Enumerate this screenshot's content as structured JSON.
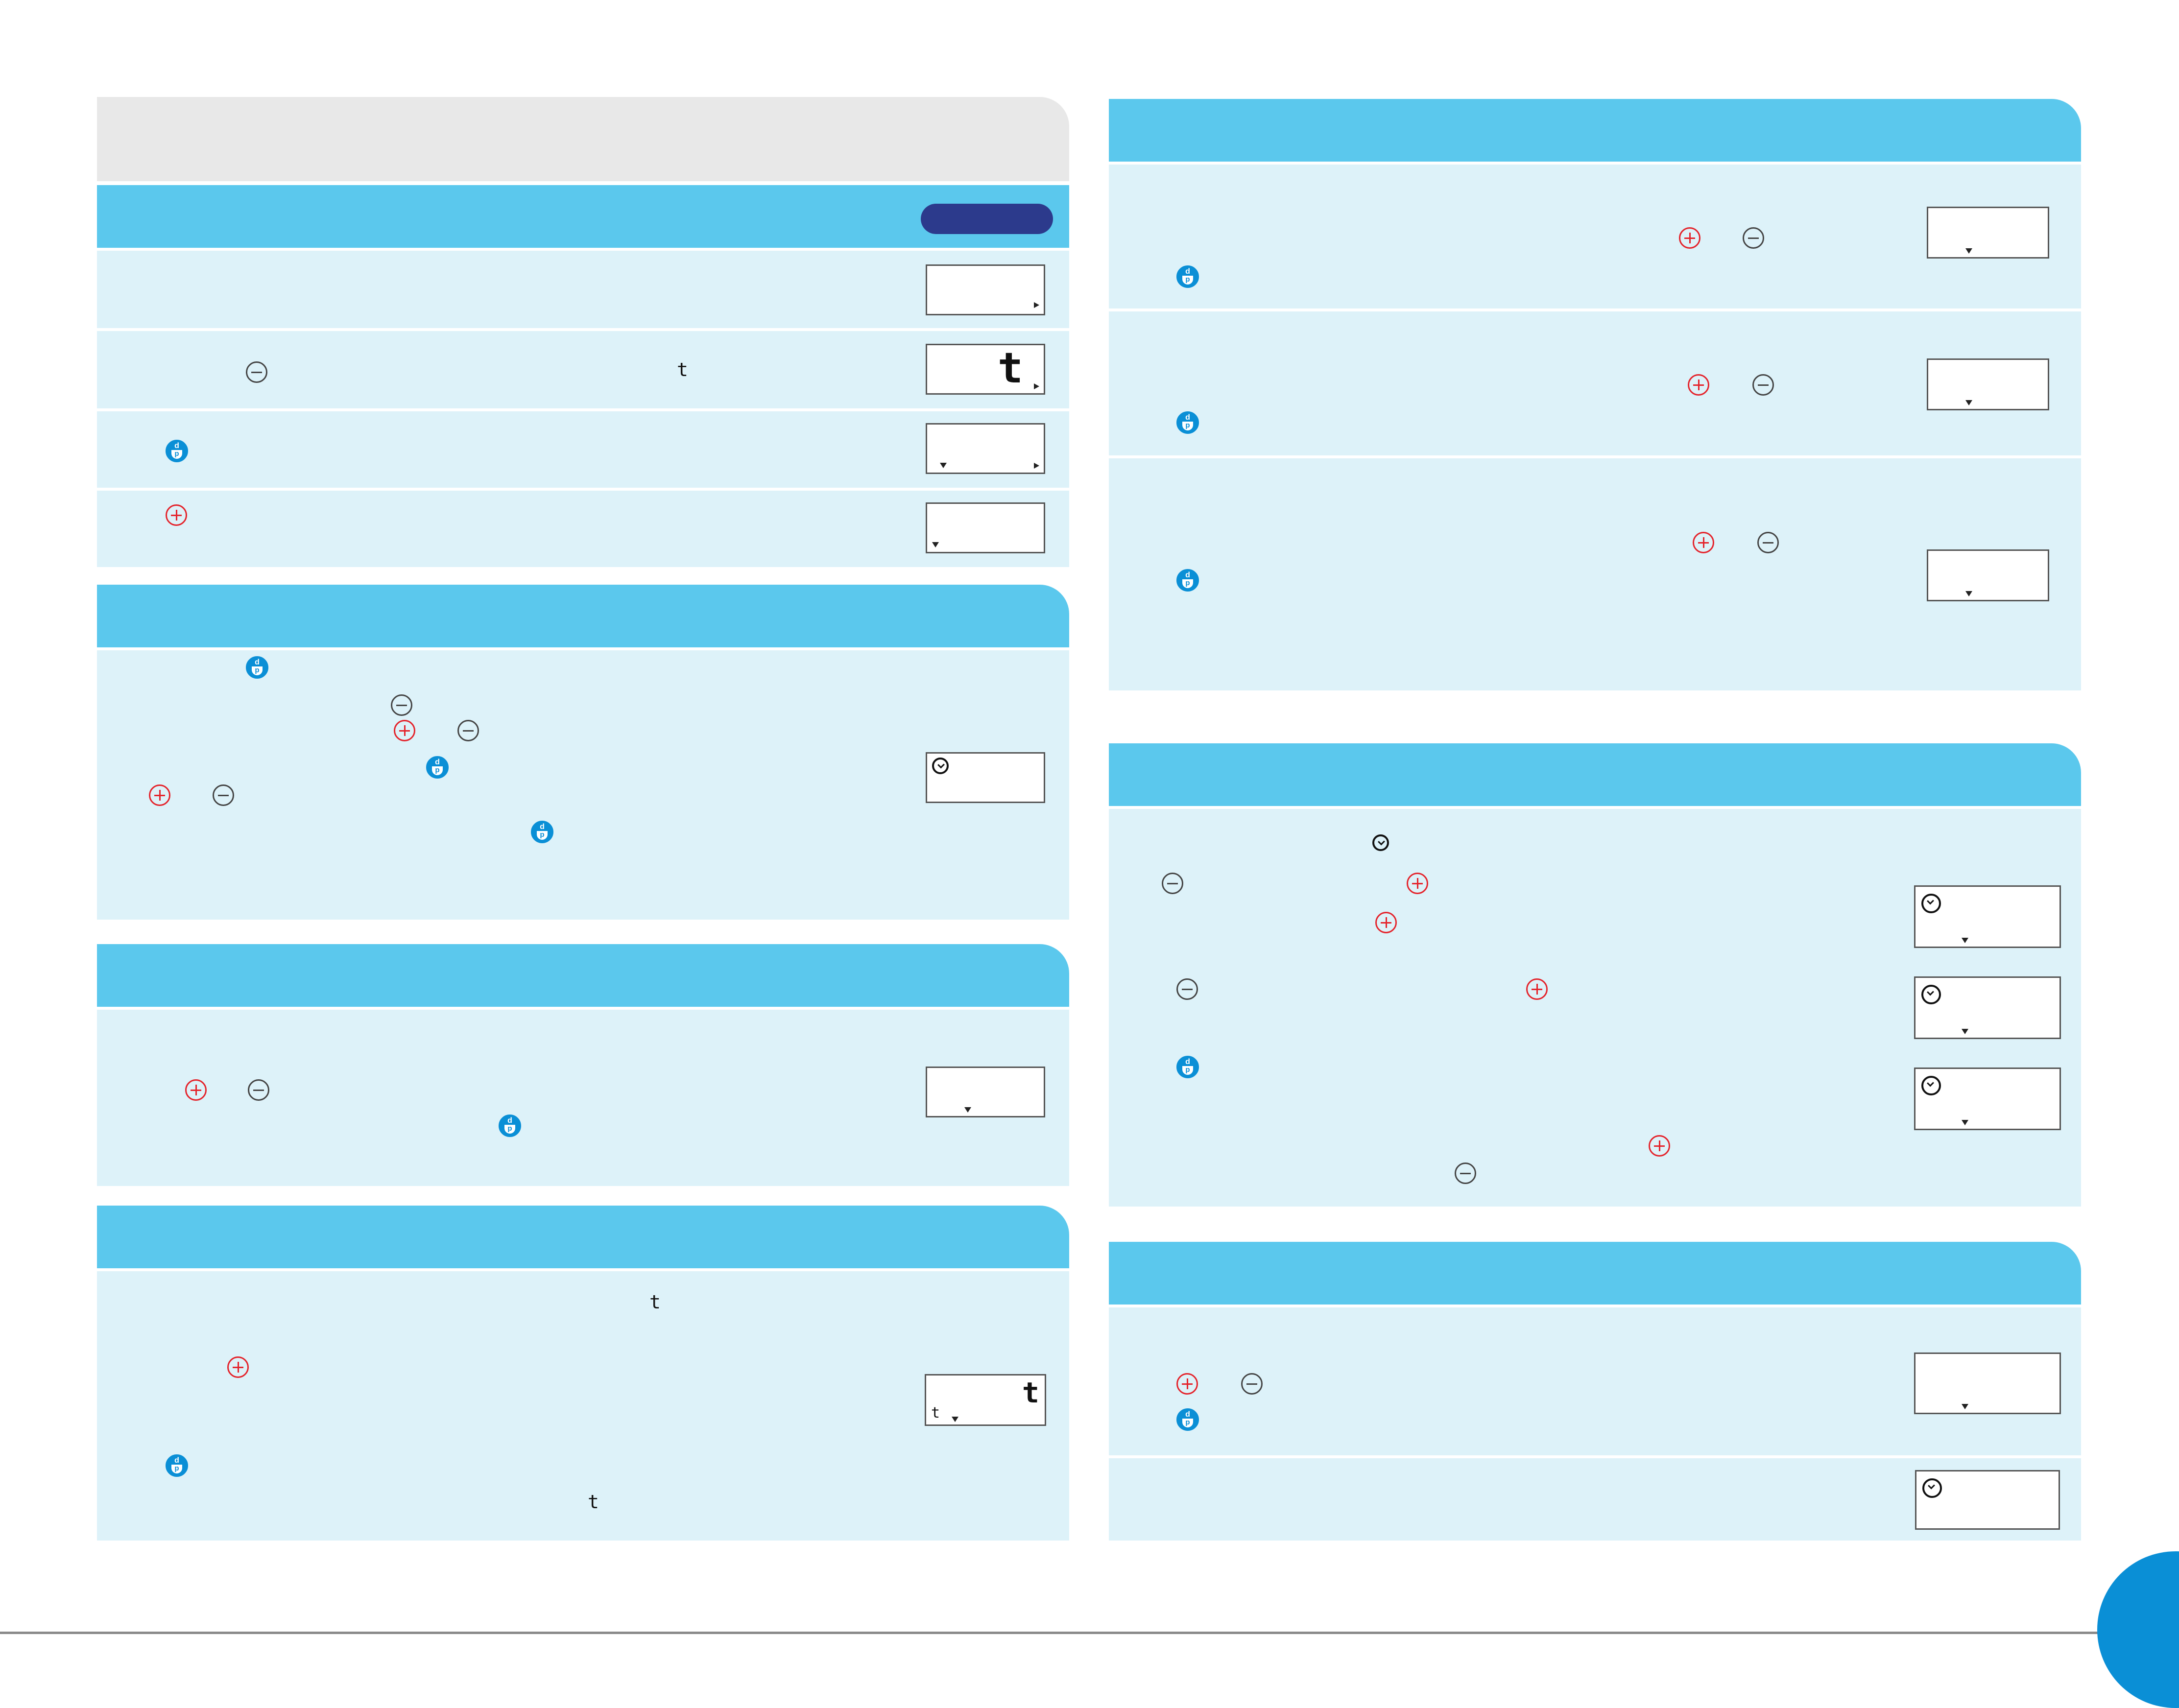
{
  "glyphs": {
    "t_small": "t",
    "t_large": "t"
  },
  "colors": {
    "band": "#5bc8ed",
    "panel": "#ddf2f9",
    "header_gray": "#e8e8e8",
    "pill": "#2c3a8c",
    "plus_icon": "#e4232b",
    "dp_icon": "#0a8fd6"
  },
  "icons": [
    "plus-icon",
    "minus-icon",
    "dp-icon",
    "clock-icon",
    "arrow-down-icon",
    "arrow-right-icon"
  ]
}
